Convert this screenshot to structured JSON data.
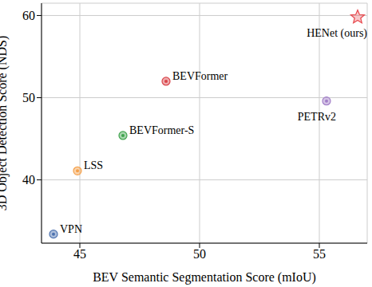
{
  "chart_data": {
    "type": "scatter",
    "x_label": "BEV Semantic Segmentation Score (mIoU)",
    "y_label": "3D Object Detection Score (NDS)",
    "xlim": [
      43.4,
      57.0
    ],
    "xticks": [
      45,
      50,
      55
    ],
    "ylim": [
      32.3,
      61.5
    ],
    "yticks": [
      40,
      50,
      60
    ],
    "grid": true,
    "points": [
      {
        "name": "VPN",
        "x": 43.9,
        "y": 33.4,
        "color": "#4c72b0",
        "marker": "circle"
      },
      {
        "name": "LSS",
        "x": 44.9,
        "y": 41.1,
        "color": "#f5a04a",
        "marker": "circle"
      },
      {
        "name": "BEVFormer-S",
        "x": 46.8,
        "y": 45.4,
        "color": "#3fa34d",
        "marker": "circle"
      },
      {
        "name": "BEVFormer",
        "x": 48.6,
        "y": 52.0,
        "color": "#d9444a",
        "marker": "circle"
      },
      {
        "name": "PETRv2",
        "x": 55.3,
        "y": 49.6,
        "color": "#a27fc8",
        "marker": "circle"
      },
      {
        "name": "HENet (ours)",
        "x": 56.6,
        "y": 59.8,
        "color": "#e8474c",
        "marker": "star"
      }
    ]
  }
}
